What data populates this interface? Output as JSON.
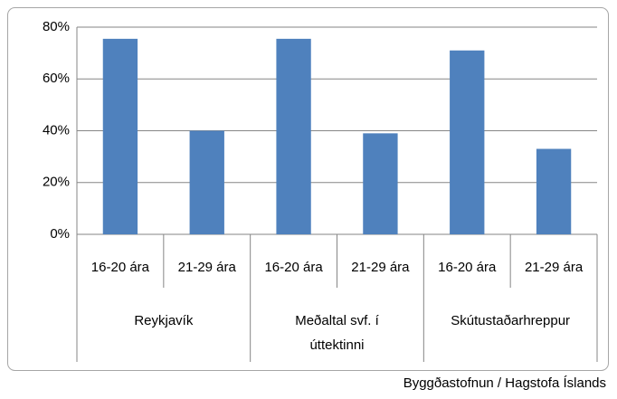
{
  "chart_data": {
    "type": "bar",
    "categories": [
      "16-20 ára",
      "21-29 ára",
      "16-20 ára",
      "21-29 ára",
      "16-20 ára",
      "21-29 ára"
    ],
    "groups": [
      "Reykjavík",
      "Meðaltal svf. í úttektinni",
      "Skútustaðarhreppur"
    ],
    "values": [
      75.5,
      40,
      75.5,
      39,
      71,
      33
    ],
    "color": "#4f81bd",
    "ylim": [
      0,
      80
    ],
    "yticks": [
      {
        "value": 0,
        "label": "0%"
      },
      {
        "value": 20,
        "label": "20%"
      },
      {
        "value": 40,
        "label": "40%"
      },
      {
        "value": 60,
        "label": "60%"
      },
      {
        "value": 80,
        "label": "80%"
      }
    ],
    "grid": true,
    "source": "Byggðastofnun / Hagstofa Íslands"
  }
}
